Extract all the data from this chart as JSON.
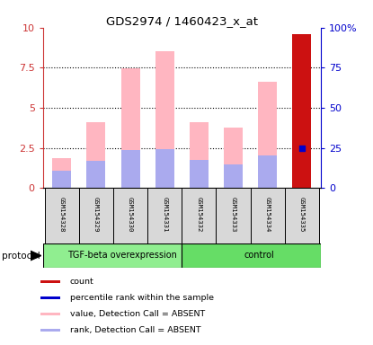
{
  "title": "GDS2974 / 1460423_x_at",
  "samples": [
    "GSM154328",
    "GSM154329",
    "GSM154330",
    "GSM154331",
    "GSM154332",
    "GSM154333",
    "GSM154334",
    "GSM154335"
  ],
  "pink_values": [
    1.85,
    4.1,
    7.45,
    8.55,
    4.1,
    3.75,
    6.6,
    9.6
  ],
  "blue_rank_values": [
    1.1,
    1.7,
    2.35,
    2.45,
    1.75,
    1.45,
    2.05,
    2.5
  ],
  "last_blue_dot_value": 2.5,
  "ylim_left": [
    0,
    10
  ],
  "ylim_right": [
    0,
    100
  ],
  "yticks_left": [
    0,
    2.5,
    5,
    7.5,
    10
  ],
  "yticks_right": [
    0,
    25,
    50,
    75,
    100
  ],
  "ytick_labels_left": [
    "0",
    "2.5",
    "5",
    "7.5",
    "10"
  ],
  "ytick_labels_right": [
    "0",
    "25",
    "50",
    "75",
    "100%"
  ],
  "protocol_groups": [
    {
      "label": "TGF-beta overexpression",
      "start": 0,
      "end": 4,
      "color": "#90EE90"
    },
    {
      "label": "control",
      "start": 4,
      "end": 8,
      "color": "#66DD66"
    }
  ],
  "bar_width": 0.55,
  "pink_color": "#FFB6C1",
  "blue_rank_color": "#AAAAEE",
  "red_color": "#CC1111",
  "blue_dot_color": "#0000CC",
  "legend_items": [
    {
      "color": "#CC1111",
      "label": "count",
      "square": true
    },
    {
      "color": "#0000CC",
      "label": "percentile rank within the sample",
      "square": true
    },
    {
      "color": "#FFB6C1",
      "label": "value, Detection Call = ABSENT",
      "square": true
    },
    {
      "color": "#AAAAEE",
      "label": "rank, Detection Call = ABSENT",
      "square": true
    }
  ],
  "left_axis_color": "#CC3333",
  "right_axis_color": "#0000CC",
  "panel_bg": "#D8D8D8"
}
